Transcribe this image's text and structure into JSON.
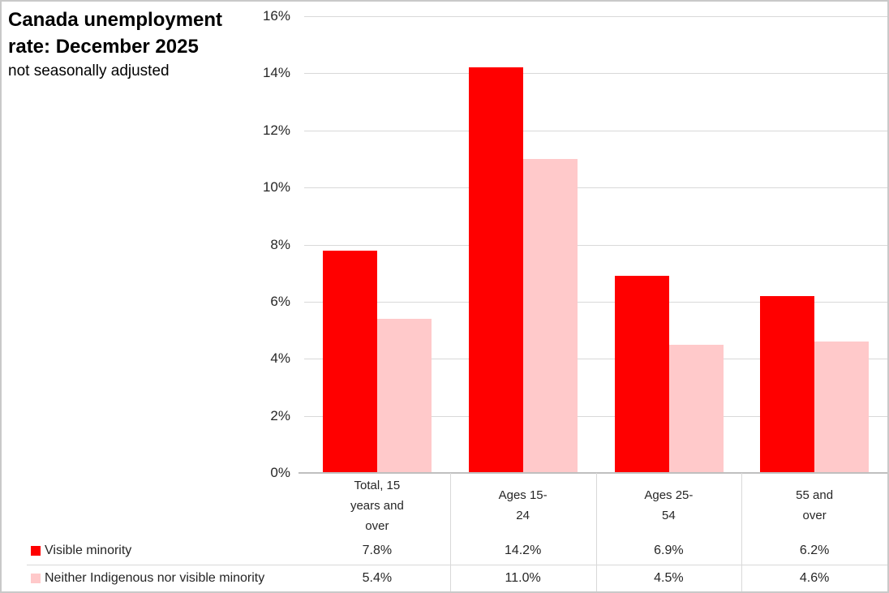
{
  "title": {
    "line1": "Canada unemployment",
    "line2": "rate: December 2025",
    "subtitle": "not seasonally adjusted"
  },
  "chart_data": {
    "type": "bar",
    "title": "Canada unemployment rate: December 2025",
    "subtitle": "not seasonally adjusted",
    "categories": [
      "Total, 15\nyears and\nover",
      "Ages 15-\n24",
      "Ages 25-\n54",
      "55 and\nover"
    ],
    "series": [
      {
        "name": "Visible minority",
        "color": "#ff0000",
        "values": [
          7.8,
          14.2,
          6.9,
          6.2
        ],
        "value_labels": [
          "7.8%",
          "14.2%",
          "6.9%",
          "6.2%"
        ]
      },
      {
        "name": "Neither Indigenous nor visible minority",
        "color": "#ffc9ca",
        "values": [
          5.4,
          11.0,
          4.5,
          4.6
        ],
        "value_labels": [
          "5.4%",
          "11.0%",
          "4.5%",
          "4.6%"
        ]
      }
    ],
    "y_axis": {
      "min": 0,
      "max": 16,
      "tick_step": 2,
      "tick_labels": [
        "0%",
        "2%",
        "4%",
        "6%",
        "8%",
        "10%",
        "12%",
        "14%",
        "16%"
      ]
    },
    "grid": true,
    "legend_position": "bottom-left data table"
  },
  "colors": {
    "series1": "#ff0000",
    "series2": "#ffc9ca",
    "gridline": "#d9d9d9",
    "axis_line": "#bfbfbf",
    "table_line": "#d9d9d9",
    "text": "#262626"
  }
}
